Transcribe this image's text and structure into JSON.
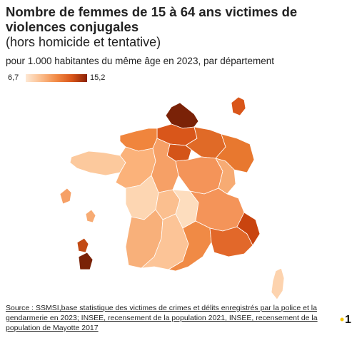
{
  "title": "Nombre de femmes de 15 à 64 ans victimes de violences conjugales",
  "subtitle_paren": "(hors homicide et tentative)",
  "subtitle": "pour 1.000 habitantes du même âge en 2023, par département",
  "legend": {
    "min": "6,7",
    "max": "15,2",
    "color_low": "#fde8d4",
    "color_high": "#8a2106"
  },
  "source": "Source : SSMSI,base statistique des victimes de crimes et délits enregistrés par la police et la gendarmerie en 2023; INSEE, recensement de la population 2021, INSEE, recensement de la population de Mayotte 2017",
  "logo": {
    "text": "1",
    "dot_color": "#f5c400"
  }
}
